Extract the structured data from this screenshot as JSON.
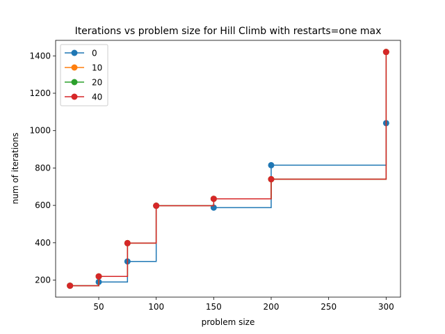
{
  "chart_data": {
    "type": "line",
    "title": "Iterations vs problem size for Hill Climb with restarts=one max",
    "xlabel": "problem size",
    "ylabel": "num of iterations",
    "xlim": [
      12.5,
      312.5
    ],
    "ylim": [
      109,
      1483
    ],
    "xticks": [
      50,
      100,
      150,
      200,
      250,
      300
    ],
    "yticks": [
      200,
      400,
      600,
      800,
      1000,
      1200,
      1400
    ],
    "step": "post",
    "legend": "upper-left",
    "grid": false,
    "x": [
      25,
      50,
      75,
      100,
      150,
      200,
      300
    ],
    "series": [
      {
        "name": "0",
        "color": "#1f77b4",
        "values": [
          170,
          190,
          300,
          598,
          588,
          815,
          1040
        ]
      },
      {
        "name": "10",
        "color": "#ff7f0e",
        "values": [
          170,
          220,
          398,
          598,
          635,
          740,
          1421
        ]
      },
      {
        "name": "20",
        "color": "#2ca02c",
        "values": [
          170,
          220,
          398,
          598,
          635,
          740,
          1421
        ]
      },
      {
        "name": "40",
        "color": "#d62728",
        "values": [
          170,
          220,
          398,
          598,
          635,
          740,
          1421
        ]
      }
    ]
  }
}
